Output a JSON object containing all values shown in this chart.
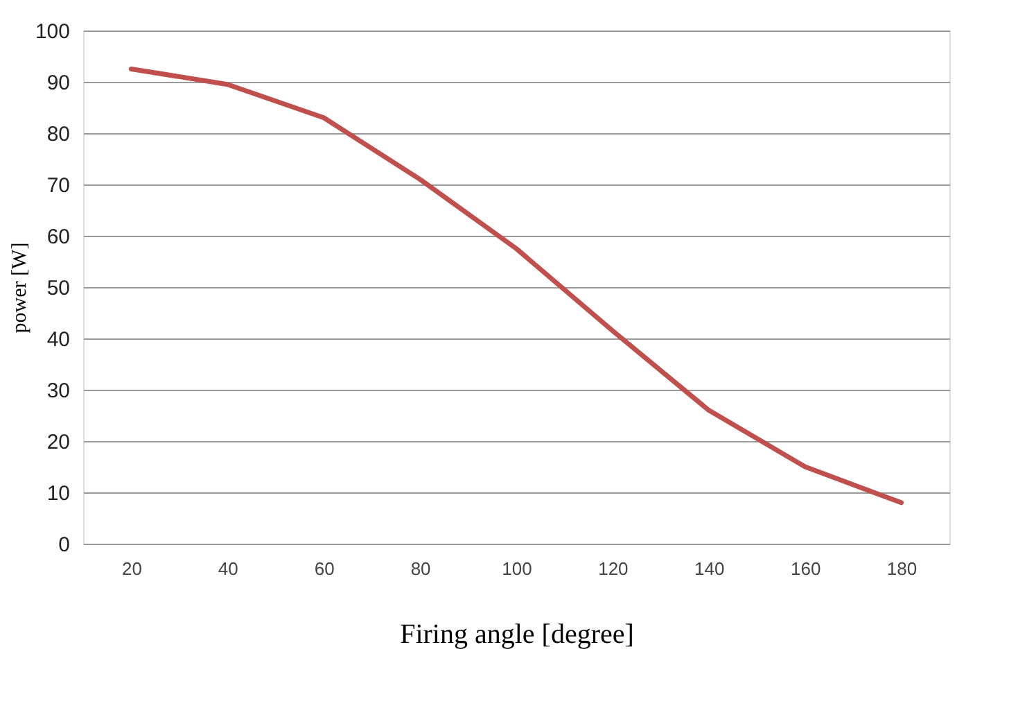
{
  "chart_data": {
    "type": "line",
    "xlabel": "Firing angle [degree]",
    "ylabel": "power [W]",
    "categories": [
      "20",
      "40",
      "60",
      "80",
      "100",
      "120",
      "140",
      "160",
      "180"
    ],
    "series": [
      {
        "color": "#c0504d",
        "values": [
          92.5,
          89.5,
          83,
          71,
          57.5,
          41.5,
          26,
          15,
          8
        ]
      }
    ],
    "ylim": [
      0,
      100
    ],
    "yticks": [
      0,
      10,
      20,
      30,
      40,
      50,
      60,
      70,
      80,
      90,
      100
    ],
    "grid": "y",
    "marker": "none",
    "line_style": "solid"
  }
}
